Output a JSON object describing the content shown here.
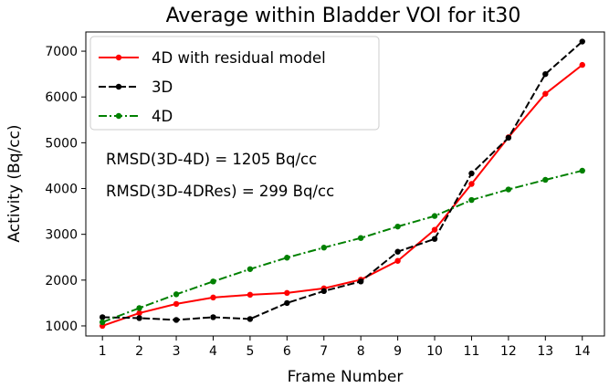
{
  "chart_data": {
    "type": "line",
    "title": "Average within Bladder VOI for it30",
    "xlabel": "Frame Number",
    "ylabel": "Activity (Bq/cc)",
    "x": [
      1,
      2,
      3,
      4,
      5,
      6,
      7,
      8,
      9,
      10,
      11,
      12,
      13,
      14
    ],
    "xticks": [
      "1",
      "2",
      "3",
      "4",
      "5",
      "6",
      "7",
      "8",
      "9",
      "10",
      "11",
      "12",
      "13",
      "14"
    ],
    "yticks": [
      "1000",
      "2000",
      "3000",
      "4000",
      "5000",
      "6000",
      "7000"
    ],
    "xlim": [
      0.55,
      14.6
    ],
    "ylim": [
      780,
      7420
    ],
    "grid": false,
    "legend_position": "upper-left",
    "series": [
      {
        "name": "4D with residual model",
        "color": "#ff0000",
        "style": "solid",
        "values": [
          1000,
          1280,
          1480,
          1620,
          1680,
          1720,
          1820,
          2010,
          2420,
          3100,
          4100,
          5120,
          6070,
          6700
        ]
      },
      {
        "name": "3D",
        "color": "#000000",
        "style": "dashed",
        "values": [
          1190,
          1170,
          1130,
          1190,
          1150,
          1500,
          1760,
          1970,
          2620,
          2900,
          4330,
          5110,
          6500,
          7210
        ]
      },
      {
        "name": "4D",
        "color": "#008000",
        "style": "dashdot",
        "values": [
          1080,
          1390,
          1690,
          1970,
          2240,
          2490,
          2710,
          2920,
          3170,
          3400,
          3750,
          3980,
          4190,
          4390
        ]
      }
    ],
    "annotations": [
      "RMSD(3D-4D) = 1205 Bq/cc",
      "RMSD(3D-4DRes) = 299 Bq/cc"
    ]
  }
}
